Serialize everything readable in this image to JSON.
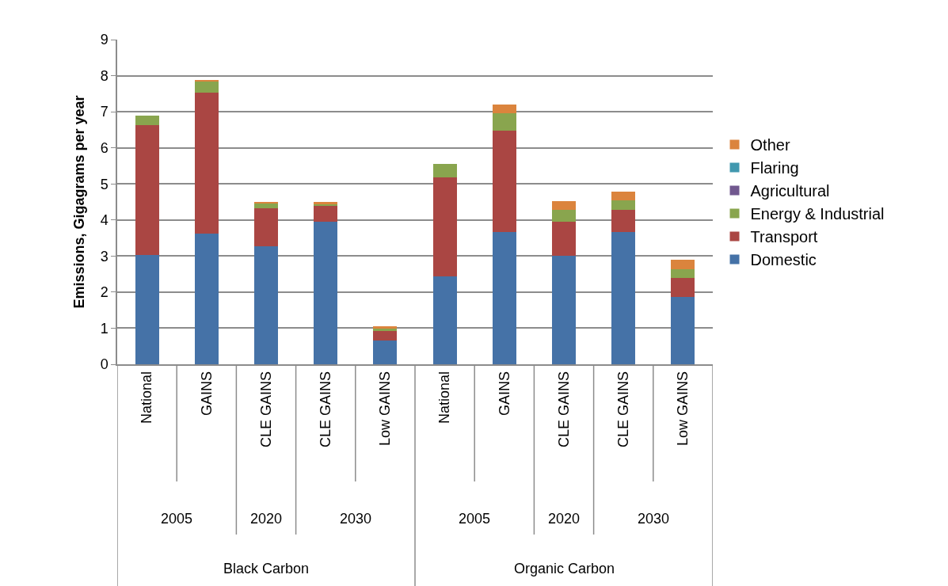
{
  "chart_data": {
    "type": "bar",
    "stacked": true,
    "ylabel": "Emissions, Gigagrams per year",
    "categories": [
      "National",
      "GAINS",
      "CLE GAINS",
      "CLE GAINS",
      "Low GAINS",
      "National",
      "GAINS",
      "CLE GAINS",
      "CLE GAINS",
      "Low GAINS"
    ],
    "annotations": [
      "2005",
      "2020",
      "2030",
      "2005",
      "2020",
      "2030",
      "Black Carbon",
      "Organic Carbon"
    ],
    "series": [
      {
        "name": "Domestic",
        "color": "#4572a7",
        "values": [
          3.02,
          3.62,
          3.27,
          3.96,
          0.66,
          2.44,
          3.66,
          3.0,
          3.67,
          1.86
        ]
      },
      {
        "name": "Transport",
        "color": "#aa4643",
        "values": [
          3.6,
          3.9,
          1.05,
          0.43,
          0.27,
          2.75,
          2.81,
          0.96,
          0.61,
          0.53
        ]
      },
      {
        "name": "Energy & Industrial",
        "color": "#89a54e",
        "values": [
          0.27,
          0.31,
          0.14,
          0.05,
          0.05,
          0.36,
          0.49,
          0.32,
          0.27,
          0.25
        ]
      },
      {
        "name": "Agricultural",
        "color": "#71588f",
        "values": [
          0,
          0,
          0,
          0,
          0,
          0,
          0,
          0,
          0,
          0
        ]
      },
      {
        "name": "Flaring",
        "color": "#4198af",
        "values": [
          0,
          0,
          0,
          0,
          0,
          0,
          0,
          0,
          0,
          0
        ]
      },
      {
        "name": "Other",
        "color": "#db843d",
        "values": [
          0,
          0.05,
          0.04,
          0.06,
          0.07,
          0,
          0.23,
          0.24,
          0.24,
          0.25
        ]
      }
    ],
    "ylim": [
      0,
      9
    ],
    "yticks": [
      0,
      1,
      2,
      3,
      4,
      5,
      6,
      7,
      8,
      9
    ],
    "grid": "y",
    "legend": "right"
  }
}
